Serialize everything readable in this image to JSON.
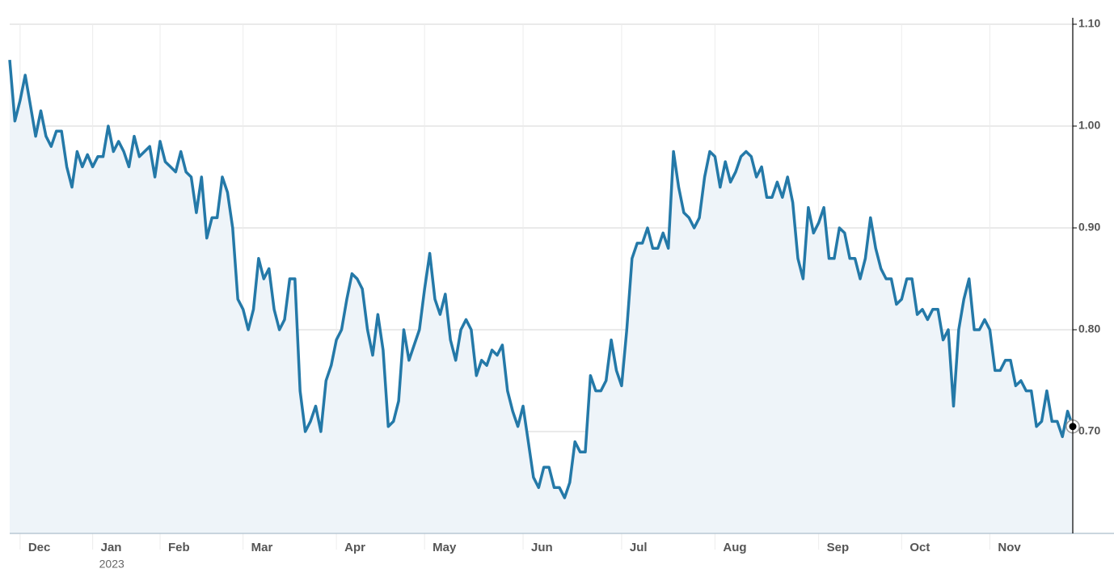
{
  "chart_data": {
    "type": "line",
    "categories": [
      null,
      null,
      "Dec",
      null,
      null,
      null,
      null,
      null,
      null,
      null,
      null,
      null,
      null,
      null,
      null,
      null,
      "Jan",
      null,
      null,
      null,
      null,
      null,
      null,
      null,
      null,
      null,
      null,
      null,
      null,
      "Feb",
      null,
      null,
      null,
      null,
      null,
      null,
      null,
      null,
      null,
      null,
      null,
      null,
      null,
      null,
      null,
      "Mar",
      null,
      null,
      null,
      null,
      null,
      null,
      null,
      null,
      null,
      null,
      null,
      null,
      null,
      null,
      null,
      null,
      null,
      "Apr",
      null,
      null,
      null,
      null,
      null,
      null,
      null,
      null,
      null,
      null,
      null,
      null,
      null,
      null,
      null,
      null,
      "May",
      null,
      null,
      null,
      null,
      null,
      null,
      null,
      null,
      null,
      null,
      null,
      null,
      null,
      null,
      null,
      null,
      null,
      null,
      "Jun",
      null,
      null,
      null,
      null,
      null,
      null,
      null,
      null,
      null,
      null,
      null,
      null,
      null,
      null,
      null,
      null,
      null,
      null,
      "Jul",
      null,
      null,
      null,
      null,
      null,
      null,
      null,
      null,
      null,
      null,
      null,
      null,
      null,
      null,
      null,
      null,
      null,
      "Aug",
      null,
      null,
      null,
      null,
      null,
      null,
      null,
      null,
      null,
      null,
      null,
      null,
      null,
      null,
      null,
      null,
      null,
      null,
      null,
      "Sep",
      null,
      null,
      null,
      null,
      null,
      null,
      null,
      null,
      null,
      null,
      null,
      null,
      null,
      null,
      null,
      "Oct",
      null,
      null,
      null,
      null,
      null,
      null,
      null,
      null,
      null,
      null,
      null,
      null,
      null,
      null,
      null,
      null,
      "Nov",
      null,
      null,
      null,
      null,
      null,
      null,
      null,
      null,
      null,
      null,
      null,
      null,
      null,
      null,
      null,
      null
    ],
    "sub_categories": [
      null,
      null,
      null,
      null,
      null,
      null,
      null,
      null,
      null,
      null,
      null,
      null,
      null,
      null,
      null,
      null,
      "2023",
      null,
      null,
      null,
      null,
      null,
      null,
      null,
      null,
      null,
      null,
      null,
      null,
      null,
      null,
      null,
      null,
      null,
      null,
      null,
      null,
      null,
      null,
      null,
      null,
      null,
      null,
      null,
      null,
      null,
      null,
      null,
      null,
      null,
      null,
      null,
      null,
      null,
      null,
      null,
      null,
      null,
      null,
      null,
      null,
      null,
      null,
      null,
      null,
      null,
      null,
      null,
      null,
      null,
      null,
      null,
      null,
      null,
      null,
      null,
      null,
      null,
      null,
      null,
      null,
      null,
      null,
      null,
      null,
      null,
      null,
      null,
      null,
      null,
      null,
      null,
      null,
      null,
      null,
      null,
      null,
      null,
      null,
      null,
      null,
      null,
      null,
      null,
      null,
      null,
      null,
      null,
      null,
      null,
      null,
      null,
      null,
      null,
      null,
      null,
      null,
      null,
      null,
      null,
      null,
      null,
      null,
      null,
      null,
      null,
      null,
      null,
      null,
      null,
      null,
      null,
      null,
      null,
      null,
      null,
      null,
      null,
      null,
      null,
      null,
      null,
      null,
      null,
      null,
      null,
      null,
      null,
      null,
      null,
      null,
      null,
      null,
      null,
      null,
      null,
      null,
      null,
      null,
      null,
      null,
      null,
      null,
      null,
      null,
      null,
      null,
      null,
      null,
      null,
      null,
      null,
      null,
      null,
      null,
      null,
      null,
      null,
      null,
      null,
      null,
      null,
      null,
      null,
      null,
      null,
      null,
      null,
      null,
      null,
      null,
      null,
      null,
      null,
      null,
      null,
      null,
      null,
      null,
      null,
      null,
      null,
      null,
      null,
      null,
      null
    ],
    "series": [
      {
        "color": "#2479a8",
        "values": [
          1.065,
          1.005,
          1.025,
          1.05,
          1.02,
          0.99,
          1.015,
          0.99,
          0.98,
          0.995,
          0.995,
          0.96,
          0.94,
          0.975,
          0.96,
          0.972,
          0.96,
          0.97,
          0.97,
          1.0,
          0.975,
          0.985,
          0.975,
          0.96,
          0.99,
          0.97,
          0.975,
          0.98,
          0.95,
          0.985,
          0.965,
          0.96,
          0.955,
          0.975,
          0.955,
          0.95,
          0.915,
          0.95,
          0.89,
          0.91,
          0.91,
          0.95,
          0.935,
          0.9,
          0.83,
          0.82,
          0.8,
          0.82,
          0.87,
          0.85,
          0.86,
          0.82,
          0.8,
          0.81,
          0.85,
          0.85,
          0.74,
          0.7,
          0.71,
          0.725,
          0.7,
          0.75,
          0.765,
          0.79,
          0.8,
          0.83,
          0.855,
          0.85,
          0.84,
          0.8,
          0.775,
          0.815,
          0.78,
          0.705,
          0.71,
          0.73,
          0.8,
          0.77,
          0.785,
          0.8,
          0.84,
          0.875,
          0.83,
          0.815,
          0.835,
          0.79,
          0.77,
          0.8,
          0.81,
          0.8,
          0.755,
          0.77,
          0.765,
          0.78,
          0.775,
          0.785,
          0.74,
          0.72,
          0.705,
          0.725,
          0.69,
          0.655,
          0.645,
          0.665,
          0.665,
          0.645,
          0.645,
          0.635,
          0.65,
          0.69,
          0.68,
          0.68,
          0.755,
          0.74,
          0.74,
          0.75,
          0.79,
          0.76,
          0.745,
          0.8,
          0.87,
          0.885,
          0.885,
          0.9,
          0.88,
          0.88,
          0.895,
          0.88,
          0.975,
          0.94,
          0.915,
          0.91,
          0.9,
          0.91,
          0.95,
          0.975,
          0.97,
          0.94,
          0.965,
          0.945,
          0.955,
          0.97,
          0.975,
          0.97,
          0.95,
          0.96,
          0.93,
          0.93,
          0.945,
          0.93,
          0.95,
          0.925,
          0.87,
          0.85,
          0.92,
          0.895,
          0.905,
          0.92,
          0.87,
          0.87,
          0.9,
          0.895,
          0.87,
          0.87,
          0.85,
          0.87,
          0.91,
          0.88,
          0.86,
          0.85,
          0.85,
          0.825,
          0.83,
          0.85,
          0.85,
          0.815,
          0.82,
          0.81,
          0.82,
          0.82,
          0.79,
          0.8,
          0.725,
          0.8,
          0.83,
          0.85,
          0.8,
          0.8,
          0.81,
          0.8,
          0.76,
          0.76,
          0.77,
          0.77,
          0.745,
          0.75,
          0.74,
          0.74,
          0.705,
          0.71,
          0.74,
          0.71,
          0.71,
          0.695,
          0.72,
          0.705
        ]
      }
    ],
    "ylim": [
      0.6,
      1.1
    ],
    "yticks": [
      {
        "value": 0.7,
        "label": "0.70"
      },
      {
        "value": 0.8,
        "label": "0.80"
      },
      {
        "value": 0.9,
        "label": "0.90"
      },
      {
        "value": 1.0,
        "label": "1.00"
      },
      {
        "value": 1.1,
        "label": "1.10"
      }
    ],
    "grid": true,
    "area_fill": "#eef4f9"
  }
}
